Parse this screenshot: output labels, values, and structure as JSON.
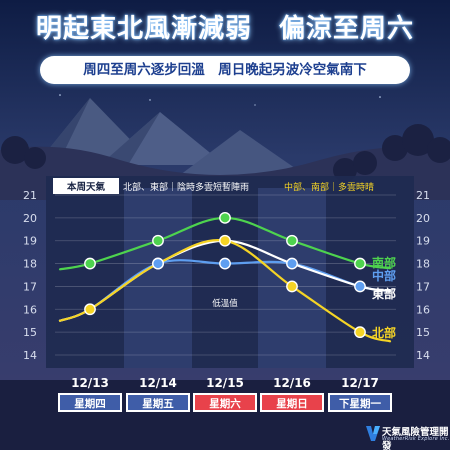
{
  "headline": "明起東北風漸減弱　偏涼至周六",
  "subheadline": "周四至周六逐步回溫　周日晚起另波冷空氣南下",
  "legend": {
    "title": "本周天氣",
    "north_east_note": "北部、東部｜陰時多雲短暫陣雨",
    "central_south_note": "中部、南部｜多雲時晴"
  },
  "annotation": "低溫值",
  "brand": {
    "name": "天氣風險管理開發",
    "sub": "WeatherRisk Explore Inc."
  },
  "colors": {
    "south": "#4ed34e",
    "central": "#5e9ef0",
    "east": "#ffffff",
    "north": "#f5d425",
    "holiday": "#e8424b",
    "weekday_box": "#3f5da8"
  },
  "chart_data": {
    "type": "line",
    "title": "",
    "xlabel": "",
    "ylabel": "",
    "categories": [
      "12/13",
      "12/14",
      "12/15",
      "12/16",
      "12/17"
    ],
    "weekdays": [
      "星期四",
      "星期五",
      "星期六",
      "星期日",
      "下星期一"
    ],
    "holiday_flags": [
      false,
      false,
      true,
      true,
      false
    ],
    "ylim": [
      14,
      21
    ],
    "yticks": [
      14,
      15,
      16,
      17,
      18,
      19,
      20,
      21
    ],
    "grid": true,
    "series": [
      {
        "name": "南部",
        "color_key": "south",
        "values": [
          18,
          19,
          20,
          19,
          18
        ]
      },
      {
        "name": "中部",
        "color_key": "central",
        "values": [
          16,
          18,
          18,
          18,
          17
        ]
      },
      {
        "name": "東部",
        "color_key": "east",
        "values": [
          16,
          18,
          19,
          18,
          17
        ]
      },
      {
        "name": "北部",
        "color_key": "north",
        "values": [
          16,
          18,
          19,
          17,
          15
        ]
      }
    ],
    "markers": [
      {
        "series": "南部",
        "indices": [
          0,
          1,
          2,
          3,
          4
        ]
      },
      {
        "series": "中部",
        "indices": [
          1,
          2,
          3,
          4
        ]
      },
      {
        "series": "北部",
        "indices": [
          0,
          1,
          2,
          3,
          4
        ]
      }
    ]
  }
}
